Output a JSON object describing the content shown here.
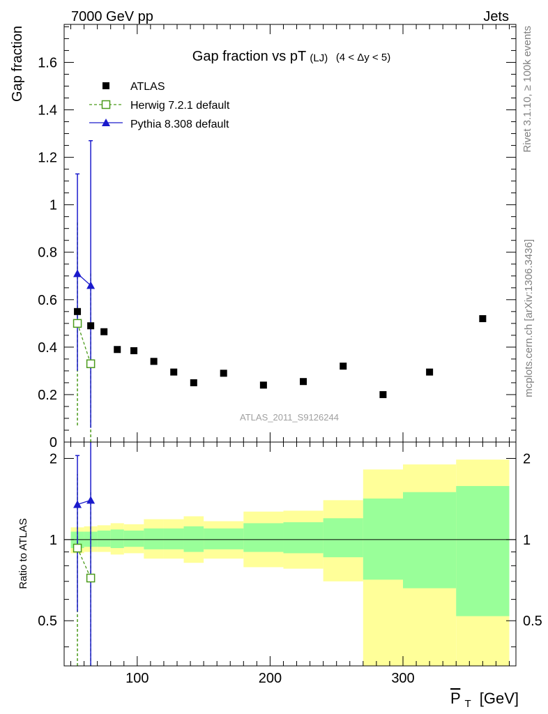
{
  "header": {
    "left": "7000 GeV pp",
    "right": "Jets"
  },
  "side_labels": {
    "rivet": "Rivet 3.1.10, ≥ 100k events",
    "mcplots": "mcplots.cern.ch [arXiv:1306.3436]"
  },
  "chart_data": [
    {
      "type": "scatter",
      "title": "Gap fraction vs pT",
      "title_sub": "(LJ)",
      "title_cut": "(4 < Δy < 5)",
      "ylabel": "Gap fraction",
      "watermark": "ATLAS_2011_S9126244",
      "xlim": [
        45,
        385
      ],
      "ylim": [
        0,
        1.76
      ],
      "yticks": [
        0,
        0.2,
        0.4,
        0.6,
        0.8,
        1,
        1.2,
        1.4,
        1.6
      ],
      "ytick_labels": [
        "0",
        "0.2",
        "0.4",
        "0.6",
        "0.8",
        "1",
        "1.2",
        "1.4",
        "1.6"
      ],
      "legend_position": "top-left",
      "series": [
        {
          "name": "ATLAS",
          "marker": "filled-square",
          "color": "#000000",
          "x": [
            55,
            65,
            75,
            85,
            97.5,
            112.5,
            127.5,
            142.5,
            165,
            195,
            225,
            255,
            285,
            320,
            360
          ],
          "y": [
            0.55,
            0.49,
            0.465,
            0.39,
            0.385,
            0.34,
            0.295,
            0.25,
            0.29,
            0.24,
            0.255,
            0.32,
            0.2,
            0.295,
            0.52
          ]
        },
        {
          "name": "Herwig 7.2.1 default",
          "marker": "open-square",
          "line": "dashed",
          "color": "#4a9a1a",
          "x": [
            55,
            65
          ],
          "y": [
            0.5,
            0.33
          ],
          "err_low": [
            0.43,
            0.33
          ],
          "err_high": [
            0.43,
            0.38
          ]
        },
        {
          "name": "Pythia 8.308 default",
          "marker": "filled-triangle",
          "line": "solid",
          "color": "#1a1acc",
          "x": [
            55,
            65
          ],
          "y": [
            0.71,
            0.66
          ],
          "err_low": [
            0.41,
            0.6
          ],
          "err_high": [
            0.42,
            0.61
          ]
        }
      ]
    },
    {
      "type": "ratio",
      "ylabel": "Ratio to ATLAS",
      "xlabel": "P_T [GeV]",
      "xlabel_main": "P",
      "xlabel_sub": "T",
      "xlabel_unit": "[GeV]",
      "xlim": [
        45,
        385
      ],
      "ylim": [
        0.34,
        2.3
      ],
      "xticks": [
        100,
        200,
        300
      ],
      "xtick_labels": [
        "100",
        "200",
        "300"
      ],
      "yticks": [
        0.5,
        1,
        2
      ],
      "ytick_labels": [
        "0.5",
        "1",
        "2"
      ],
      "bands": [
        {
          "x0": 50,
          "x1": 60,
          "y1_lo": 0.93,
          "y1_hi": 1.07,
          "y2_lo": 0.89,
          "y2_hi": 1.11
        },
        {
          "x0": 60,
          "x1": 70,
          "y1_lo": 0.94,
          "y1_hi": 1.07,
          "y2_lo": 0.9,
          "y2_hi": 1.12
        },
        {
          "x0": 70,
          "x1": 80,
          "y1_lo": 0.94,
          "y1_hi": 1.08,
          "y2_lo": 0.9,
          "y2_hi": 1.13
        },
        {
          "x0": 80,
          "x1": 90,
          "y1_lo": 0.93,
          "y1_hi": 1.09,
          "y2_lo": 0.88,
          "y2_hi": 1.15
        },
        {
          "x0": 90,
          "x1": 105,
          "y1_lo": 0.94,
          "y1_hi": 1.08,
          "y2_lo": 0.89,
          "y2_hi": 1.14
        },
        {
          "x0": 105,
          "x1": 120,
          "y1_lo": 0.92,
          "y1_hi": 1.1,
          "y2_lo": 0.85,
          "y2_hi": 1.19
        },
        {
          "x0": 120,
          "x1": 135,
          "y1_lo": 0.92,
          "y1_hi": 1.1,
          "y2_lo": 0.85,
          "y2_hi": 1.19
        },
        {
          "x0": 135,
          "x1": 150,
          "y1_lo": 0.9,
          "y1_hi": 1.12,
          "y2_lo": 0.82,
          "y2_hi": 1.22
        },
        {
          "x0": 150,
          "x1": 180,
          "y1_lo": 0.92,
          "y1_hi": 1.1,
          "y2_lo": 0.85,
          "y2_hi": 1.17
        },
        {
          "x0": 180,
          "x1": 210,
          "y1_lo": 0.9,
          "y1_hi": 1.15,
          "y2_lo": 0.79,
          "y2_hi": 1.27
        },
        {
          "x0": 210,
          "x1": 240,
          "y1_lo": 0.89,
          "y1_hi": 1.16,
          "y2_lo": 0.78,
          "y2_hi": 1.28
        },
        {
          "x0": 240,
          "x1": 270,
          "y1_lo": 0.86,
          "y1_hi": 1.2,
          "y2_lo": 0.7,
          "y2_hi": 1.4
        },
        {
          "x0": 270,
          "x1": 300,
          "y1_lo": 0.71,
          "y1_hi": 1.42,
          "y2_lo": 0.34,
          "y2_hi": 1.82
        },
        {
          "x0": 300,
          "x1": 340,
          "y1_lo": 0.66,
          "y1_hi": 1.5,
          "y2_lo": 0.34,
          "y2_hi": 1.9
        },
        {
          "x0": 340,
          "x1": 380,
          "y1_lo": 0.52,
          "y1_hi": 1.58,
          "y2_lo": 0.34,
          "y2_hi": 1.98
        }
      ],
      "series": [
        {
          "name": "Herwig 7.2.1 default",
          "x": [
            55,
            65
          ],
          "y": [
            0.93,
            0.72
          ],
          "err_low": [
            0.8,
            0.72
          ],
          "err_high": [
            0.82,
            0.8
          ]
        },
        {
          "name": "Pythia 8.308 default",
          "x": [
            55,
            65
          ],
          "y": [
            1.35,
            1.4
          ],
          "err_low": [
            0.81,
            1.07
          ],
          "err_high": [
            0.7,
            1.0
          ]
        }
      ]
    }
  ],
  "colors": {
    "atlas": "#000000",
    "herwig": "#4a9a1a",
    "pythia": "#1a1acc",
    "band_inner": "#99ff99",
    "band_outer": "#ffff99",
    "watermark": "#a0a0a0",
    "side_text": "#808080"
  }
}
